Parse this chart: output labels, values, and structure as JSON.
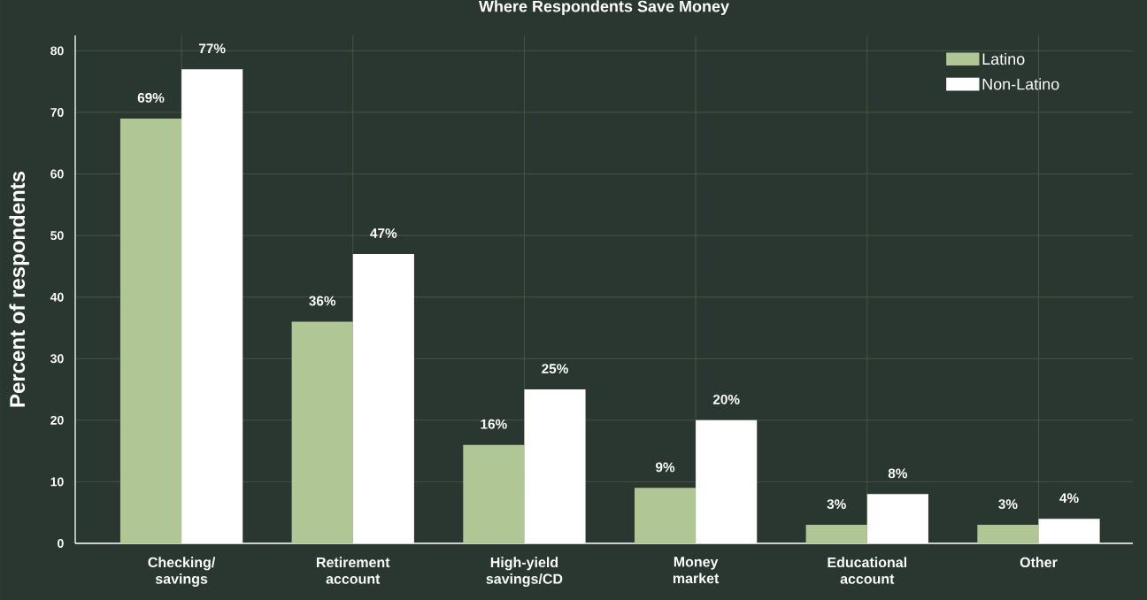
{
  "chart_data": {
    "type": "bar",
    "title": "Where Respondents Save Money",
    "ylabel": "Percent of respondents",
    "categories": [
      "Checking/ savings",
      "Retirement account",
      "High-yield savings/CD",
      "Money market",
      "Educational account",
      "Other"
    ],
    "series": [
      {
        "name": "Latino",
        "color": "#b0c695",
        "values": [
          69,
          36,
          16,
          9,
          3,
          3
        ],
        "value_labels": [
          "69%",
          "36%",
          "16%",
          "9%",
          "3%",
          "3%"
        ]
      },
      {
        "name": "Non-Latino",
        "color": "#ffffff",
        "values": [
          77,
          47,
          25,
          20,
          8,
          4
        ],
        "value_labels": [
          "77%",
          "47%",
          "25%",
          "20%",
          "8%",
          "4%"
        ]
      }
    ],
    "ylim": [
      0,
      82.5
    ],
    "yticks": [
      0,
      10,
      20,
      30,
      40,
      50,
      60,
      70,
      80
    ],
    "grid": true,
    "legend": "top right"
  }
}
